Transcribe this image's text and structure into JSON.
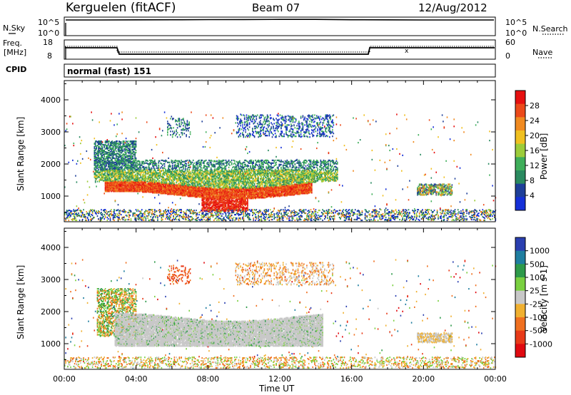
{
  "header": {
    "station": "Kerguelen (fitACF)",
    "beam": "Beam 07",
    "date": "12/Aug/2012"
  },
  "labels": {
    "nsky": "N.Sky",
    "nsearch": "N.Search",
    "nave": "Nave",
    "freq_line1": "Freq.",
    "freq_line2": "[MHz]",
    "cpid": "CPID",
    "cpid_value": "normal (fast) 151"
  },
  "noise_axis": {
    "left_ticks": [
      "10^5",
      "10^0"
    ],
    "right_ticks": [
      "10^5",
      "10^0"
    ]
  },
  "freq_axis": {
    "left_ticks": [
      "18",
      "8"
    ],
    "right_ticks": [
      "60",
      "0"
    ]
  },
  "colors": {
    "power_scale": [
      "#1530d8",
      "#1e3f99",
      "#2a8a60",
      "#3fae5a",
      "#9ccc3a",
      "#f0c020",
      "#f08a20",
      "#ec4a1a",
      "#e61010"
    ],
    "velocity_scale": [
      "#2a3fb0",
      "#1f7ea0",
      "#2e9a4a",
      "#7ad040",
      "#c8c8c8",
      "#f0b030",
      "#f07020",
      "#e83a18",
      "#e00a10"
    ]
  },
  "chart_data": [
    {
      "type": "line",
      "title": "N.Sky / N.Search",
      "x": [
        "00:00",
        "02:00",
        "04:00",
        "06:00",
        "08:00",
        "10:00",
        "12:00",
        "14:00",
        "16:00",
        "18:00",
        "20:00",
        "22:00",
        "24:00"
      ],
      "series": [
        {
          "name": "N.Sky",
          "values": [
            100000,
            100000,
            110000,
            120000,
            130000,
            140000,
            150000,
            150000,
            120000,
            110000,
            100000,
            100000,
            100000
          ]
        }
      ],
      "ylim": [
        1,
        100000
      ],
      "scale": "log"
    },
    {
      "type": "line",
      "title": "Freq. / Nave",
      "x": [
        "00:00",
        "02:00",
        "02:50",
        "03:00",
        "12:00",
        "16:50",
        "17:00",
        "20:00",
        "24:00"
      ],
      "series": [
        {
          "name": "Freq.",
          "values": [
            13,
            13,
            13,
            11,
            11,
            11,
            13,
            13,
            13
          ]
        }
      ],
      "ylim": [
        8,
        18
      ],
      "y2lim": [
        0,
        60
      ]
    },
    {
      "type": "heatmap",
      "title": "Power",
      "xlabel": "",
      "ylabel": "Slant Range [km]",
      "x_ticks": [
        "00:00",
        "04:00",
        "08:00",
        "12:00",
        "16:00",
        "20:00",
        "00:00"
      ],
      "y_ticks": [
        "1000",
        "2000",
        "3000",
        "4000"
      ],
      "ylim": [
        200,
        4600
      ],
      "colorbar": {
        "label": "Power [dB]",
        "ticks": [
          "4",
          "8",
          "12",
          "16",
          "20",
          "24",
          "28"
        ]
      }
    },
    {
      "type": "heatmap",
      "title": "Velocity",
      "xlabel": "Time UT",
      "ylabel": "Slant Range [km]",
      "x_ticks": [
        "00:00",
        "04:00",
        "08:00",
        "12:00",
        "16:00",
        "20:00",
        "00:00"
      ],
      "y_ticks": [
        "1000",
        "2000",
        "3000",
        "4000"
      ],
      "ylim": [
        200,
        4600
      ],
      "colorbar": {
        "label": "Velocity [m s-1]",
        "ticks": [
          "1000",
          "500",
          "100",
          "25",
          "-25",
          "-100",
          "-500",
          "-1000"
        ]
      }
    }
  ]
}
